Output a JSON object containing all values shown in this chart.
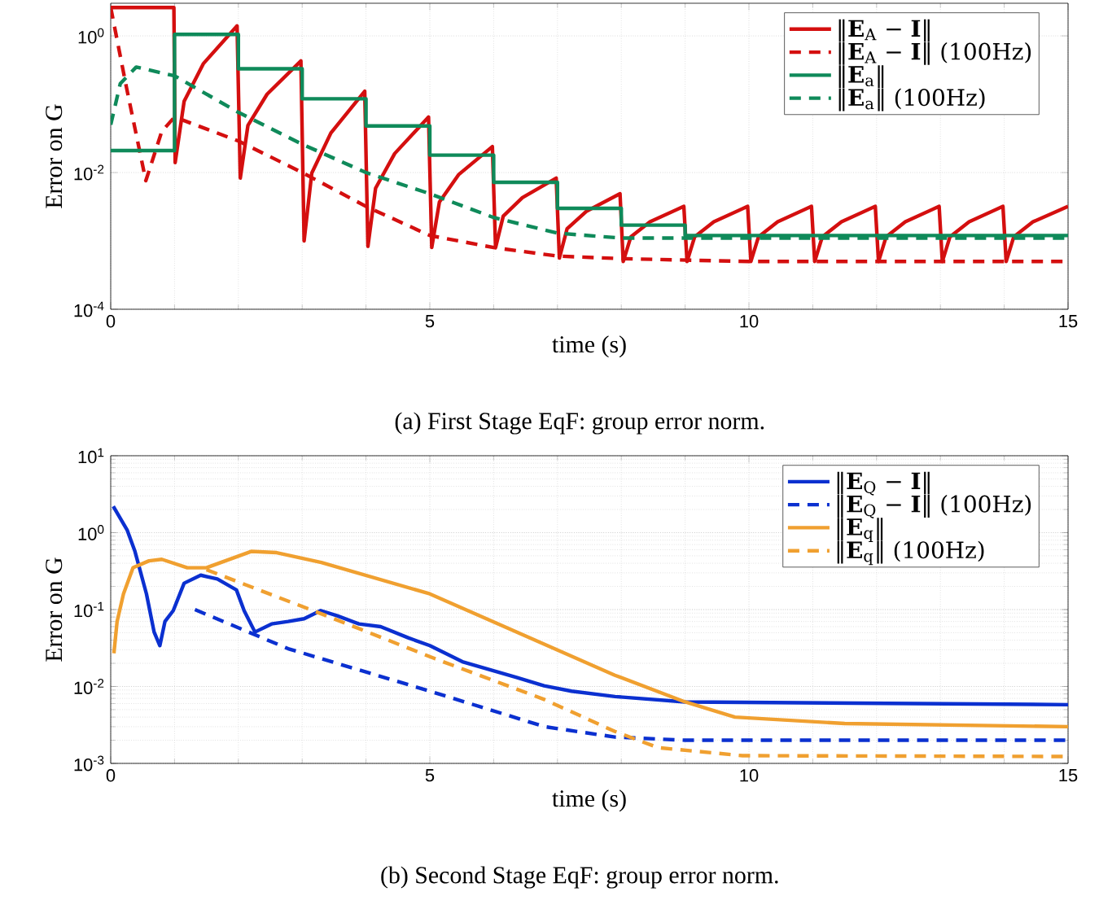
{
  "chart_data": [
    {
      "type": "line",
      "xlabel": "time (s)",
      "ylabel": "Error on G",
      "annotations": [
        "(a) First Stage EqF: group error norm."
      ],
      "log": "y",
      "grid": true,
      "legend": "top right",
      "xlim": [
        0,
        15
      ],
      "ylim": [
        0.0001,
        3
      ],
      "xticks": [
        0,
        5,
        10,
        15
      ],
      "yticks": [
        {
          "value": 0.0001,
          "label": "10$^{-4}$"
        },
        {
          "value": 0.01,
          "label": "10$^{-2}$"
        },
        {
          "value": 1,
          "label": "10$^{0}$"
        }
      ],
      "series": [
        {
          "name": "‖**E**$_{A}$ − **I**‖",
          "color": "#d40f0f",
          "line_style": "solid",
          "x": [
            0,
            0.99,
            1.01,
            1.15,
            1.45,
            1.98,
            2.03,
            2.15,
            2.45,
            2.98,
            3.03,
            3.15,
            3.45,
            3.98,
            4.03,
            4.15,
            4.45,
            4.98,
            5.03,
            5.15,
            5.45,
            5.98,
            6.03,
            6.15,
            6.45,
            6.98,
            7.03,
            7.15,
            7.45,
            7.98,
            8.03,
            8.15,
            8.45,
            8.98,
            9.03,
            9.15,
            9.45,
            9.98,
            10.03,
            10.15,
            10.45,
            10.98,
            11.03,
            11.15,
            11.45,
            11.98,
            12.03,
            12.15,
            12.45,
            12.98,
            13.03,
            13.15,
            13.45,
            13.98,
            14.03,
            14.15,
            14.45,
            15
          ],
          "values": [
            2.6,
            2.6,
            0.014,
            0.11,
            0.39,
            1.4,
            0.0083,
            0.049,
            0.14,
            0.43,
            0.001,
            0.0098,
            0.038,
            0.155,
            0.00083,
            0.0059,
            0.019,
            0.065,
            0.0008,
            0.0037,
            0.0093,
            0.024,
            0.0008,
            0.0023,
            0.0043,
            0.0083,
            0.00056,
            0.0015,
            0.0027,
            0.0049,
            0.0005,
            0.00115,
            0.0019,
            0.0032,
            0.0005,
            0.00115,
            0.0019,
            0.0032,
            0.0005,
            0.00115,
            0.0019,
            0.0032,
            0.0005,
            0.00115,
            0.0019,
            0.0032,
            0.0005,
            0.00115,
            0.0019,
            0.0032,
            0.0005,
            0.00115,
            0.0019,
            0.0032,
            0.0005,
            0.00115,
            0.0019,
            0.0032
          ]
        },
        {
          "name": "‖**E**$_{A}$ − **I**‖ (100Hz)",
          "color": "#d40f0f",
          "line_style": "dashed",
          "x": [
            0,
            0.25,
            0.55,
            0.8,
            1,
            2,
            3,
            4,
            5,
            6,
            7,
            8,
            10,
            15
          ],
          "values": [
            2.6,
            0.17,
            0.0076,
            0.04,
            0.065,
            0.029,
            0.01,
            0.0032,
            0.0012,
            0.0008,
            0.0006,
            0.00055,
            0.0005,
            0.0005
          ]
        },
        {
          "name": "‖**E**$_{a}$‖",
          "type": "step",
          "color": "#0f8a5a",
          "line_style": "solid",
          "x": [
            0,
            1,
            2,
            3,
            4,
            5,
            6,
            7,
            8,
            9,
            15
          ],
          "values": [
            0.021,
            1.05,
            0.33,
            0.12,
            0.048,
            0.018,
            0.0072,
            0.003,
            0.0017,
            0.0012,
            0.0012
          ]
        },
        {
          "name": "‖**E**$_{a}$‖ (100Hz)",
          "color": "#0f8a5a",
          "line_style": "dashed",
          "x": [
            0,
            0.15,
            0.4,
            1,
            2,
            3,
            4,
            5,
            6,
            7,
            8,
            10,
            15
          ],
          "values": [
            0.05,
            0.2,
            0.35,
            0.26,
            0.076,
            0.026,
            0.01,
            0.0049,
            0.0022,
            0.0013,
            0.0011,
            0.0011,
            0.0011
          ]
        }
      ]
    },
    {
      "type": "line",
      "xlabel": "time (s)",
      "ylabel": "Error on G",
      "annotations": [
        "(b) Second Stage EqF: group error norm."
      ],
      "log": "y",
      "grid": true,
      "legend": "top right",
      "xlim": [
        0,
        15
      ],
      "ylim": [
        0.001,
        10
      ],
      "xticks": [
        0,
        5,
        10,
        15
      ],
      "yticks": [
        {
          "value": 0.001,
          "label": "10$^{-3}$"
        },
        {
          "value": 0.01,
          "label": "10$^{-2}$"
        },
        {
          "value": 0.1,
          "label": "10$^{-1}$"
        },
        {
          "value": 1,
          "label": "10$^{0}$"
        },
        {
          "value": 10,
          "label": "10$^{1}$"
        }
      ],
      "series": [
        {
          "name": "‖**E**$_{Q}$ − **I**‖",
          "color": "#0b30d0",
          "line_style": "solid",
          "x": [
            0.04,
            0.26,
            0.38,
            0.56,
            0.68,
            0.77,
            0.85,
            0.98,
            1.15,
            1.41,
            1.67,
            1.97,
            2.09,
            2.26,
            2.52,
            2.78,
            3.03,
            3.29,
            3.55,
            3.89,
            4.23,
            4.66,
            5,
            5.51,
            5.94,
            6.37,
            6.79,
            7.22,
            7.9,
            9,
            15
          ],
          "values": [
            2.2,
            1.07,
            0.57,
            0.16,
            0.051,
            0.034,
            0.07,
            0.097,
            0.22,
            0.28,
            0.25,
            0.18,
            0.097,
            0.051,
            0.065,
            0.07,
            0.076,
            0.097,
            0.083,
            0.065,
            0.06,
            0.043,
            0.034,
            0.021,
            0.0165,
            0.013,
            0.0102,
            0.0087,
            0.0074,
            0.0063,
            0.0058
          ]
        },
        {
          "name": "‖**E**$_{Q}$ − **I**‖ (100Hz)",
          "color": "#0b30d0",
          "line_style": "dashed",
          "x": [
            1.32,
            2.78,
            5,
            6.8,
            7.9,
            9,
            15
          ],
          "values": [
            0.1,
            0.031,
            0.0087,
            0.003,
            0.0022,
            0.002,
            0.002
          ]
        },
        {
          "name": "‖**E**$_{q}$‖",
          "color": "#f0a030",
          "line_style": "solid",
          "x": [
            0.05,
            0.1,
            0.2,
            0.35,
            0.6,
            0.8,
            1.2,
            1.5,
            2.2,
            2.6,
            3.3,
            5,
            7.9,
            9,
            9.78,
            11.5,
            15
          ],
          "values": [
            0.027,
            0.07,
            0.16,
            0.35,
            0.43,
            0.45,
            0.35,
            0.35,
            0.57,
            0.55,
            0.41,
            0.16,
            0.014,
            0.0063,
            0.004,
            0.0033,
            0.003
          ]
        },
        {
          "name": "‖**E**$_{q}$‖ (100Hz)",
          "color": "#f0a030",
          "line_style": "dashed",
          "x": [
            1.5,
            3.38,
            5.08,
            6.79,
            7.9,
            8.58,
            9.9,
            15
          ],
          "values": [
            0.33,
            0.083,
            0.023,
            0.0068,
            0.0026,
            0.0016,
            0.00126,
            0.00123
          ]
        }
      ]
    }
  ]
}
